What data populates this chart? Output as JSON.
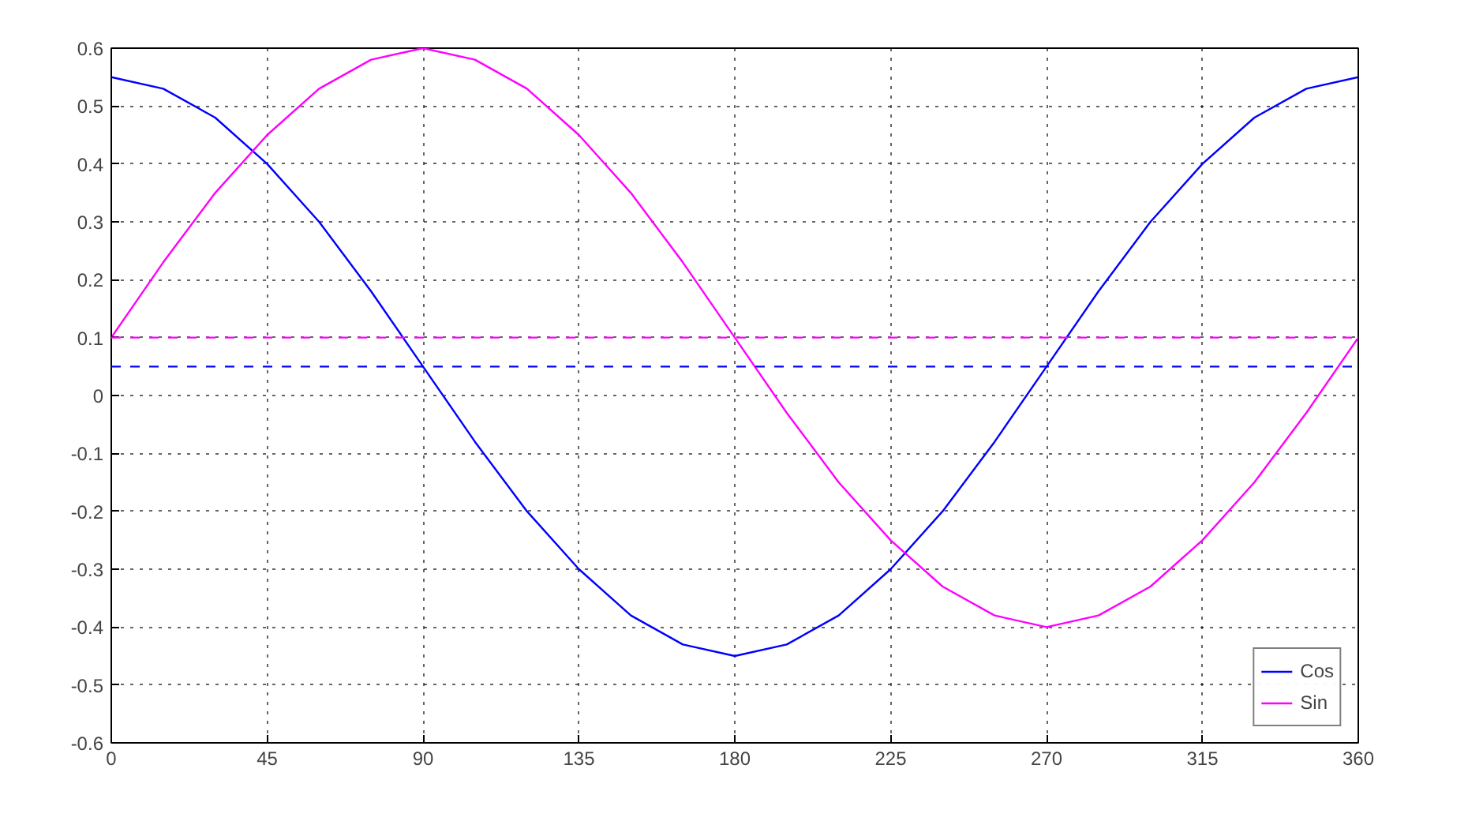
{
  "chart_data": {
    "type": "line",
    "x": [
      0,
      15,
      30,
      45,
      60,
      75,
      90,
      105,
      120,
      135,
      150,
      165,
      180,
      195,
      210,
      225,
      240,
      255,
      270,
      285,
      300,
      315,
      330,
      345,
      360
    ],
    "series": [
      {
        "name": "Cos",
        "color": "#0000ff",
        "values": [
          0.55,
          0.53,
          0.48,
          0.4,
          0.3,
          0.18,
          0.05,
          -0.08,
          -0.2,
          -0.3,
          -0.38,
          -0.43,
          -0.45,
          -0.43,
          -0.38,
          -0.3,
          -0.2,
          -0.08,
          0.05,
          0.18,
          0.3,
          0.4,
          0.48,
          0.53,
          0.55
        ]
      },
      {
        "name": "Sin",
        "color": "#ff00ff",
        "values": [
          0.1,
          0.23,
          0.35,
          0.45,
          0.53,
          0.58,
          0.6,
          0.58,
          0.53,
          0.45,
          0.35,
          0.23,
          0.1,
          -0.03,
          -0.15,
          -0.25,
          -0.33,
          -0.38,
          -0.4,
          -0.38,
          -0.33,
          -0.25,
          -0.15,
          -0.03,
          0.1
        ]
      }
    ],
    "ref_lines": [
      {
        "axis": "y",
        "value": 0.05,
        "color": "#0000ff",
        "line_style": "dashed"
      },
      {
        "axis": "y",
        "value": 0.1,
        "color": "#ff00ff",
        "line_style": "dashed"
      }
    ],
    "xlim": [
      0,
      360
    ],
    "xticks": [
      0,
      45,
      90,
      135,
      180,
      225,
      270,
      315,
      360
    ],
    "ylim": [
      -0.6,
      0.6
    ],
    "yticks": [
      -0.6,
      -0.5,
      -0.4,
      -0.3,
      -0.2,
      -0.1,
      0,
      0.1,
      0.2,
      0.3,
      0.4,
      0.5,
      0.6
    ],
    "grid": true,
    "legend": "bottom right",
    "line_style": "solid",
    "marker": "none"
  }
}
